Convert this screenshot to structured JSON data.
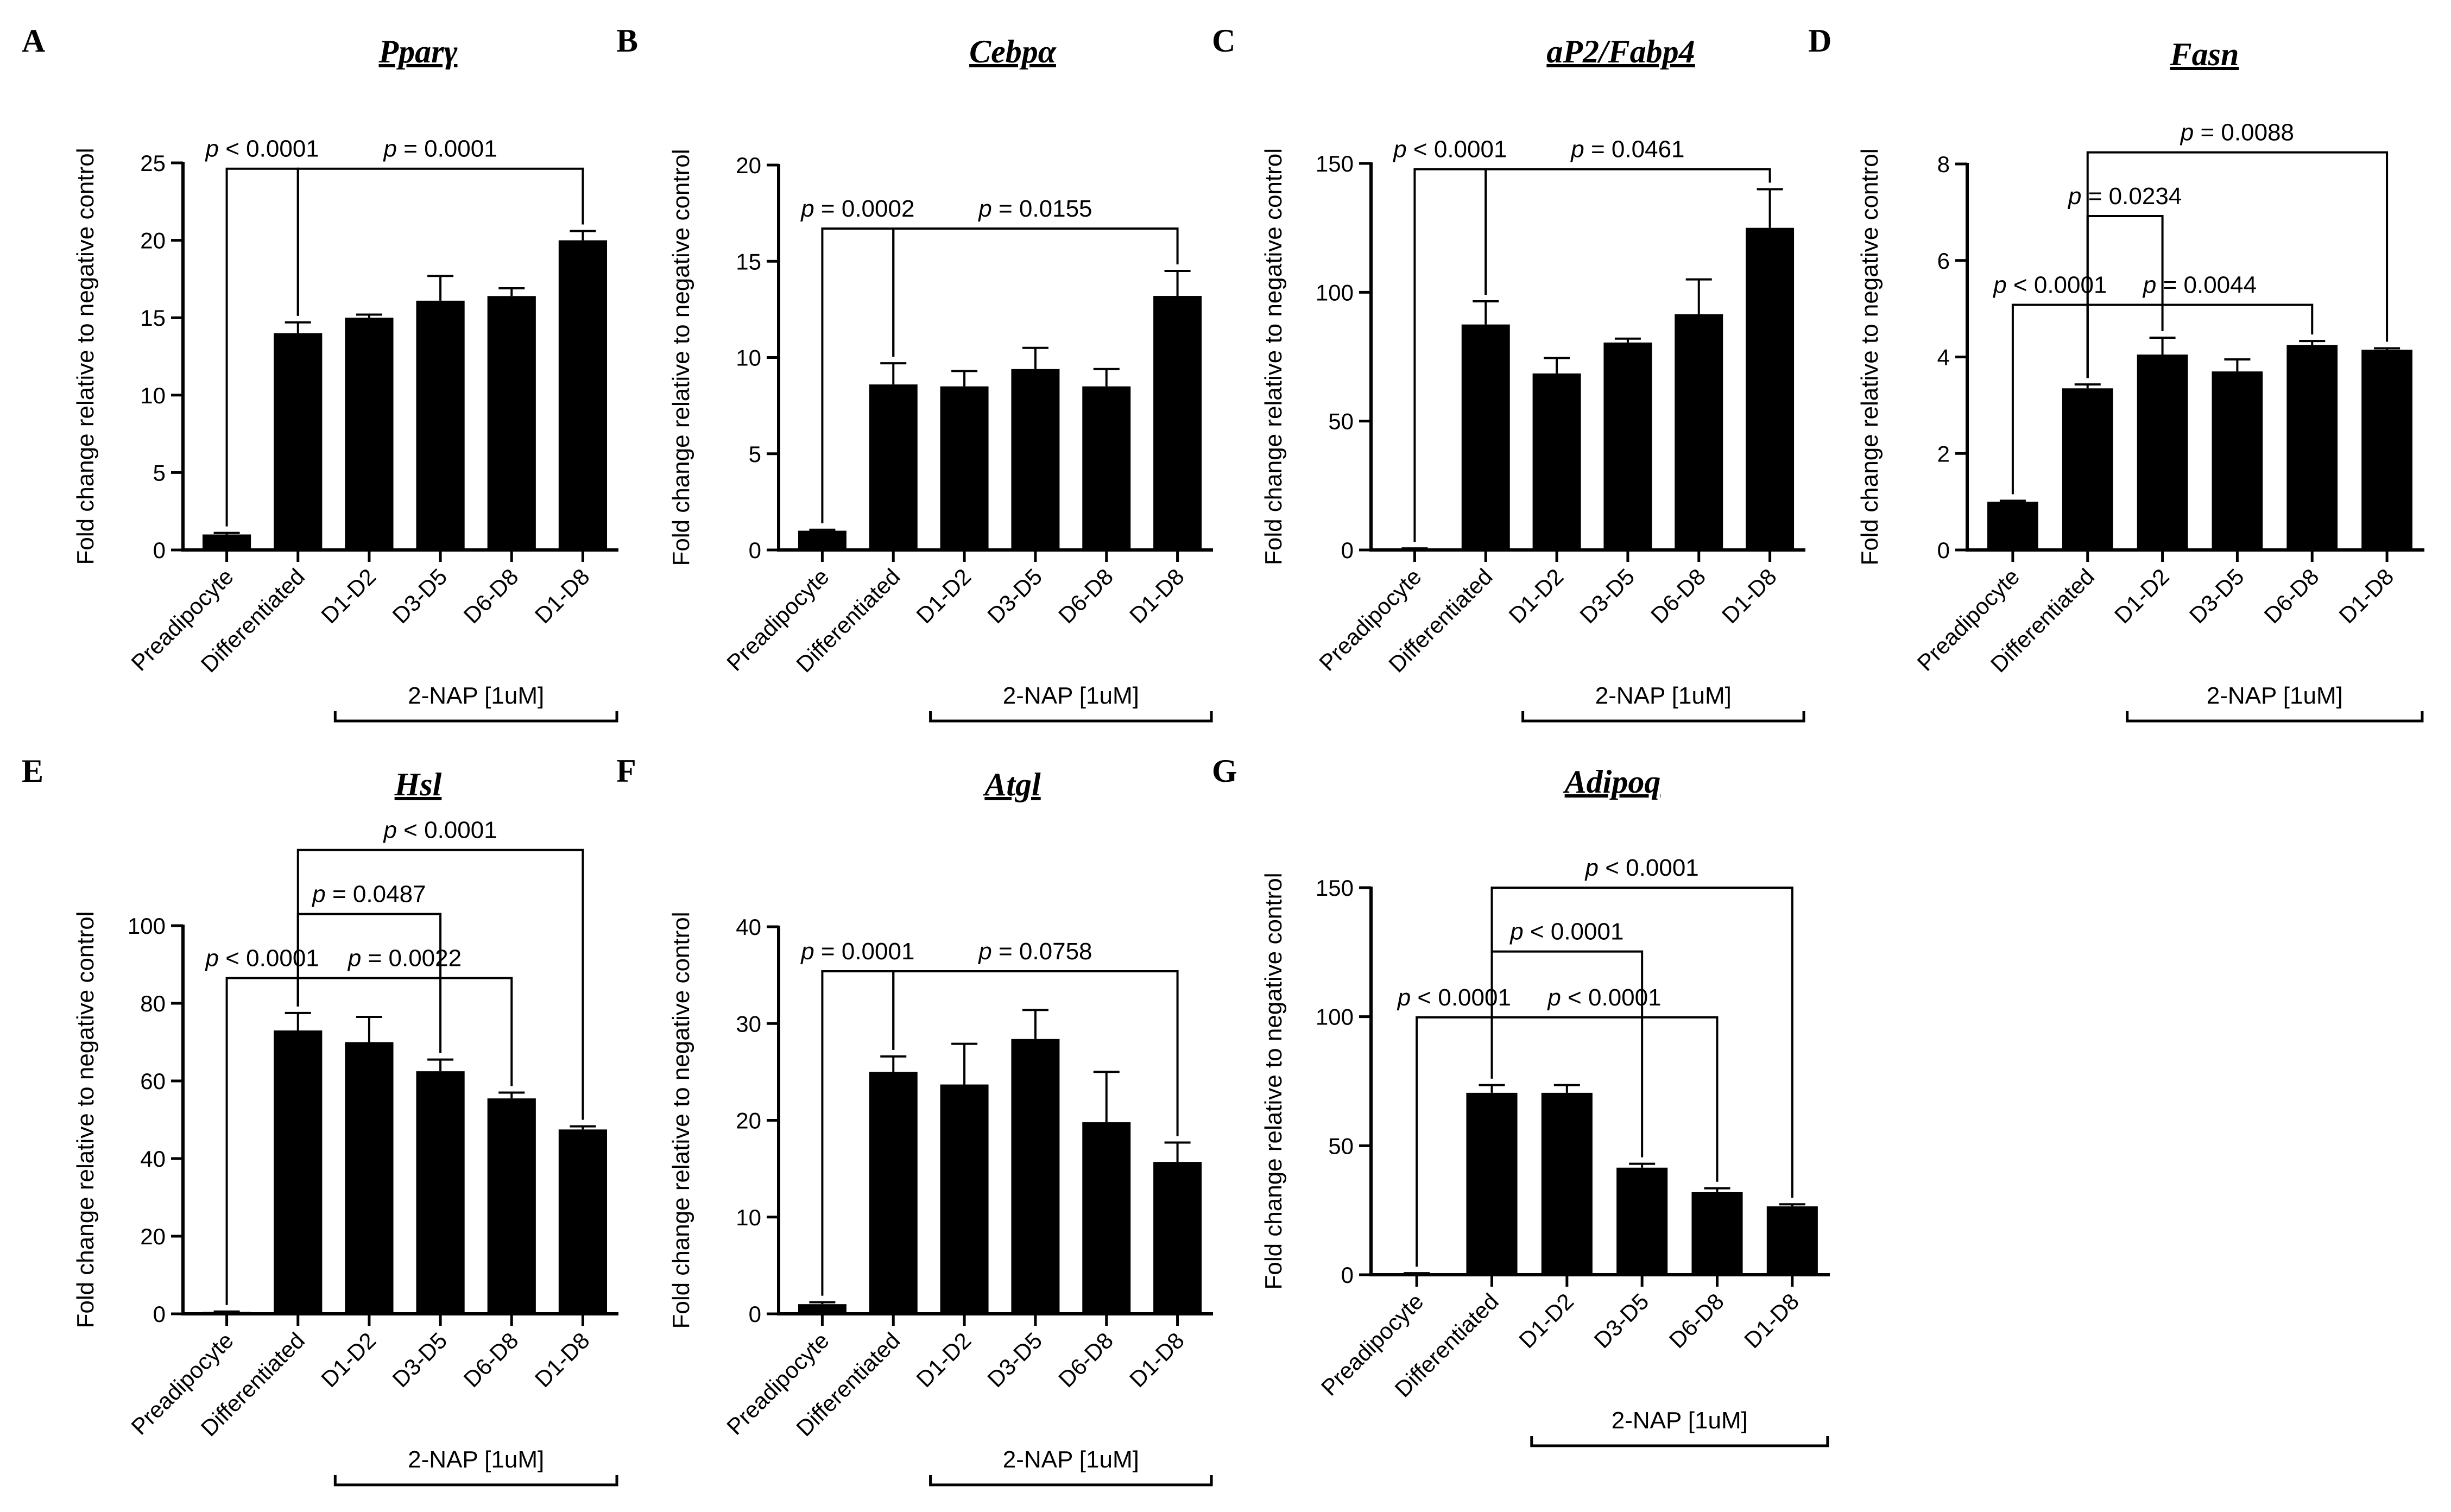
{
  "chart_data": [
    {
      "type": "bar",
      "panel": "A",
      "title": "Pparγ",
      "ylabel": "Fold change relative to negative control",
      "categories": [
        "Preadipocyte",
        "Differentiated",
        "D1-D2",
        "D3-D5",
        "D6-D8",
        "D1-D8"
      ],
      "values": [
        1.0,
        14.0,
        15.0,
        16.1,
        16.4,
        20.0
      ],
      "errors": [
        0.1,
        0.7,
        0.2,
        1.6,
        0.5,
        0.6
      ],
      "ylim": [
        0,
        25
      ],
      "yticks": [
        0,
        5,
        10,
        15,
        20,
        25
      ],
      "treatment_label": "2-NAP [1uM]",
      "significance": [
        {
          "from": 0,
          "to": 1,
          "label": "< 0.0001"
        },
        {
          "from": 1,
          "to": 5,
          "label": "= 0.0001"
        }
      ]
    },
    {
      "type": "bar",
      "panel": "B",
      "title": "Cebpα",
      "ylabel": "Fold change relative to negative control",
      "categories": [
        "Preadipocyte",
        "Differentiated",
        "D1-D2",
        "D3-D5",
        "D6-D8",
        "D1-D8"
      ],
      "values": [
        1.0,
        8.6,
        8.5,
        9.4,
        8.5,
        13.2
      ],
      "errors": [
        0.05,
        1.1,
        0.8,
        1.1,
        0.9,
        1.3
      ],
      "ylim": [
        0,
        20
      ],
      "yticks": [
        0,
        5,
        10,
        15,
        20
      ],
      "treatment_label": "2-NAP [1uM]",
      "significance": [
        {
          "from": 0,
          "to": 1,
          "label": "= 0.0002"
        },
        {
          "from": 1,
          "to": 5,
          "label": "= 0.0155"
        }
      ]
    },
    {
      "type": "bar",
      "panel": "C",
      "title": "aP2/Fabp4",
      "ylabel": "Fold change relative to negative control",
      "categories": [
        "Preadipocyte",
        "Differentiated",
        "D1-D2",
        "D3-D5",
        "D6-D8",
        "D1-D8"
      ],
      "values": [
        0.5,
        87.5,
        68.5,
        80.5,
        91.5,
        125.0
      ],
      "errors": [
        0.1,
        9.0,
        6.0,
        1.5,
        13.5,
        15.0
      ],
      "ylim": [
        0,
        150
      ],
      "yticks": [
        0,
        50,
        100,
        150
      ],
      "treatment_label": "2-NAP [1uM]",
      "significance": [
        {
          "from": 0,
          "to": 1,
          "label": "< 0.0001"
        },
        {
          "from": 1,
          "to": 5,
          "label": "= 0.0461"
        }
      ]
    },
    {
      "type": "bar",
      "panel": "D",
      "title": "Fasn",
      "ylabel": "Fold change relative to negative control",
      "categories": [
        "Preadipocyte",
        "Differentiated",
        "D1-D2",
        "D3-D5",
        "D6-D8",
        "D1-D8"
      ],
      "values": [
        1.0,
        3.35,
        4.05,
        3.7,
        4.25,
        4.15
      ],
      "errors": [
        0.02,
        0.08,
        0.35,
        0.25,
        0.08,
        0.03
      ],
      "ylim": [
        0,
        8
      ],
      "yticks": [
        0,
        2,
        4,
        6,
        8
      ],
      "treatment_label": "2-NAP [1uM]",
      "significance": [
        {
          "from": 0,
          "to": 1,
          "label": "< 0.0001"
        },
        {
          "from": 1,
          "to": 4,
          "label": "= 0.0044"
        },
        {
          "from": 1,
          "to": 2,
          "label": "= 0.0234"
        },
        {
          "from": 1,
          "to": 5,
          "label": "= 0.0088"
        }
      ]
    },
    {
      "type": "bar",
      "panel": "E",
      "title": "Hsl",
      "ylabel": "Fold change relative to negative control",
      "categories": [
        "Preadipocyte",
        "Differentiated",
        "D1-D2",
        "D3-D5",
        "D6-D8",
        "D1-D8"
      ],
      "values": [
        0.5,
        73.0,
        70.0,
        62.5,
        55.5,
        47.5
      ],
      "errors": [
        0.1,
        4.5,
        6.5,
        3.0,
        1.5,
        0.8
      ],
      "ylim": [
        0,
        100
      ],
      "yticks": [
        0,
        20,
        40,
        60,
        80,
        100
      ],
      "treatment_label": "2-NAP [1uM]",
      "significance": [
        {
          "from": 0,
          "to": 1,
          "label": "< 0.0001"
        },
        {
          "from": 1,
          "to": 4,
          "label": "= 0.0022"
        },
        {
          "from": 1,
          "to": 3,
          "label": "= 0.0487"
        },
        {
          "from": 1,
          "to": 5,
          "label": "< 0.0001"
        }
      ]
    },
    {
      "type": "bar",
      "panel": "F",
      "title": "Atgl",
      "ylabel": "Fold change relative to negative control",
      "categories": [
        "Preadipocyte",
        "Differentiated",
        "D1-D2",
        "D3-D5",
        "D6-D8",
        "D1-D8"
      ],
      "values": [
        1.0,
        25.0,
        23.7,
        28.4,
        19.8,
        15.7
      ],
      "errors": [
        0.2,
        1.6,
        4.2,
        3.0,
        5.2,
        2.0
      ],
      "ylim": [
        0,
        40
      ],
      "yticks": [
        0,
        10,
        20,
        30,
        40
      ],
      "treatment_label": "2-NAP [1uM]",
      "significance": [
        {
          "from": 0,
          "to": 1,
          "label": "= 0.0001"
        },
        {
          "from": 1,
          "to": 5,
          "label": "= 0.0758"
        }
      ]
    },
    {
      "type": "bar",
      "panel": "G",
      "title": "Adipoq",
      "ylabel": "Fold change relative to negative control",
      "categories": [
        "Preadipocyte",
        "Differentiated",
        "D1-D2",
        "D3-D5",
        "D6-D8",
        "D1-D8"
      ],
      "values": [
        0.5,
        70.5,
        70.5,
        41.5,
        32.0,
        26.5
      ],
      "errors": [
        0.1,
        3.0,
        3.0,
        1.5,
        1.5,
        0.8
      ],
      "ylim": [
        0,
        150
      ],
      "yticks": [
        0,
        50,
        100,
        150
      ],
      "treatment_label": "2-NAP [1uM]",
      "significance": [
        {
          "from": 0,
          "to": 1,
          "label": "< 0.0001"
        },
        {
          "from": 1,
          "to": 4,
          "label": "< 0.0001"
        },
        {
          "from": 1,
          "to": 3,
          "label": "< 0.0001"
        },
        {
          "from": 1,
          "to": 5,
          "label": "< 0.0001"
        }
      ]
    }
  ]
}
